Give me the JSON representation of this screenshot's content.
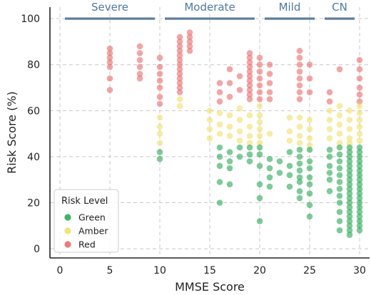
{
  "chart_data": {
    "type": "scatter",
    "title": "",
    "xlabel": "MMSE Score",
    "ylabel": "Risk Score (%)",
    "xlim": [
      -1,
      31
    ],
    "ylim": [
      -4,
      105
    ],
    "xticks": [
      0,
      5,
      10,
      15,
      20,
      25,
      30
    ],
    "yticks": [
      0,
      20,
      40,
      60,
      80,
      100
    ],
    "grid": true,
    "grid_style": "dashed",
    "legend": {
      "title": "Risk Level",
      "placement": "bottom-left",
      "entries": [
        "Green",
        "Amber",
        "Red"
      ]
    },
    "stage_annotations": [
      {
        "label": "Severe",
        "x_start": 0.5,
        "x_end": 9.5,
        "y": 100
      },
      {
        "label": "Moderate",
        "x_start": 10.5,
        "x_end": 19.5,
        "y": 100
      },
      {
        "label": "Mild",
        "x_start": 20.5,
        "x_end": 25.5,
        "y": 100
      },
      {
        "label": "CN",
        "x_start": 26.5,
        "x_end": 29.5,
        "y": 100
      }
    ],
    "series": [
      {
        "name": "Green",
        "color": "#2eaa58",
        "points": [
          [
            10,
            42
          ],
          [
            10,
            39
          ],
          [
            16,
            44
          ],
          [
            16,
            40
          ],
          [
            16,
            36
          ],
          [
            16,
            29
          ],
          [
            16,
            20
          ],
          [
            17,
            42
          ],
          [
            17,
            38
          ],
          [
            17,
            35
          ],
          [
            17,
            28
          ],
          [
            18,
            44
          ],
          [
            18,
            40
          ],
          [
            19,
            44
          ],
          [
            19,
            41
          ],
          [
            19,
            38
          ],
          [
            20,
            44
          ],
          [
            20,
            41
          ],
          [
            20,
            36
          ],
          [
            20,
            28
          ],
          [
            20,
            22
          ],
          [
            20,
            12
          ],
          [
            21,
            39
          ],
          [
            21,
            35
          ],
          [
            21,
            31
          ],
          [
            21,
            27
          ],
          [
            22,
            38
          ],
          [
            22,
            33
          ],
          [
            23,
            42
          ],
          [
            23,
            36
          ],
          [
            23,
            32
          ],
          [
            23,
            27
          ],
          [
            24,
            43
          ],
          [
            24,
            40
          ],
          [
            24,
            37
          ],
          [
            24,
            34
          ],
          [
            24,
            31
          ],
          [
            24,
            29
          ],
          [
            24,
            25
          ],
          [
            24,
            22
          ],
          [
            25,
            43
          ],
          [
            25,
            38
          ],
          [
            25,
            35
          ],
          [
            25,
            31
          ],
          [
            25,
            28
          ],
          [
            25,
            24
          ],
          [
            25,
            19
          ],
          [
            25,
            14
          ],
          [
            27,
            43
          ],
          [
            27,
            40
          ],
          [
            27,
            36
          ],
          [
            27,
            33
          ],
          [
            27,
            30
          ],
          [
            27,
            25
          ],
          [
            28,
            44
          ],
          [
            28,
            41
          ],
          [
            28,
            38
          ],
          [
            28,
            35
          ],
          [
            28,
            32
          ],
          [
            28,
            29
          ],
          [
            28,
            26
          ],
          [
            28,
            23
          ],
          [
            28,
            20
          ],
          [
            28,
            16
          ],
          [
            28,
            12
          ],
          [
            28,
            8
          ],
          [
            29,
            44
          ],
          [
            29,
            42
          ],
          [
            29,
            40
          ],
          [
            29,
            38
          ],
          [
            29,
            36
          ],
          [
            29,
            34
          ],
          [
            29,
            32
          ],
          [
            29,
            30
          ],
          [
            29,
            28
          ],
          [
            29,
            26
          ],
          [
            29,
            24
          ],
          [
            29,
            22
          ],
          [
            29,
            20
          ],
          [
            29,
            18
          ],
          [
            29,
            16
          ],
          [
            29,
            14
          ],
          [
            29,
            12
          ],
          [
            29,
            10
          ],
          [
            29,
            8
          ],
          [
            29,
            6
          ],
          [
            30,
            44
          ],
          [
            30,
            42
          ],
          [
            30,
            40
          ],
          [
            30,
            38
          ],
          [
            30,
            36
          ],
          [
            30,
            34
          ],
          [
            30,
            32
          ],
          [
            30,
            30
          ],
          [
            30,
            28
          ],
          [
            30,
            26
          ],
          [
            30,
            24
          ],
          [
            30,
            22
          ],
          [
            30,
            20
          ],
          [
            30,
            18
          ],
          [
            30,
            16
          ],
          [
            30,
            14
          ],
          [
            30,
            12
          ],
          [
            30,
            10
          ],
          [
            30,
            8
          ]
        ]
      },
      {
        "name": "Amber",
        "color": "#f0e070",
        "points": [
          [
            10,
            57
          ],
          [
            10,
            53
          ],
          [
            10,
            50
          ],
          [
            10,
            46
          ],
          [
            12,
            65
          ],
          [
            12,
            62
          ],
          [
            15,
            60
          ],
          [
            15,
            56
          ],
          [
            15,
            52
          ],
          [
            15,
            48
          ],
          [
            16,
            59
          ],
          [
            16,
            54
          ],
          [
            16,
            50
          ],
          [
            17,
            58
          ],
          [
            17,
            53
          ],
          [
            17,
            49
          ],
          [
            18,
            61
          ],
          [
            18,
            56
          ],
          [
            18,
            51
          ],
          [
            18,
            47
          ],
          [
            19,
            58
          ],
          [
            19,
            53
          ],
          [
            19,
            49
          ],
          [
            19,
            46
          ],
          [
            20,
            62
          ],
          [
            20,
            58
          ],
          [
            20,
            55
          ],
          [
            20,
            52
          ],
          [
            20,
            49
          ],
          [
            20,
            46
          ],
          [
            21,
            50
          ],
          [
            23,
            57
          ],
          [
            23,
            51
          ],
          [
            23,
            47
          ],
          [
            24,
            57
          ],
          [
            24,
            53
          ],
          [
            24,
            49
          ],
          [
            24,
            46
          ],
          [
            25,
            56
          ],
          [
            25,
            52
          ],
          [
            25,
            48
          ],
          [
            25,
            45
          ],
          [
            27,
            60
          ],
          [
            27,
            56
          ],
          [
            27,
            52
          ],
          [
            27,
            48
          ],
          [
            28,
            62
          ],
          [
            28,
            58
          ],
          [
            28,
            54
          ],
          [
            28,
            50
          ],
          [
            28,
            46
          ],
          [
            29,
            60
          ],
          [
            29,
            56
          ],
          [
            29,
            52
          ],
          [
            29,
            48
          ],
          [
            29,
            46
          ],
          [
            30,
            62
          ],
          [
            30,
            59
          ],
          [
            30,
            56
          ],
          [
            30,
            53
          ],
          [
            30,
            50
          ],
          [
            30,
            47
          ]
        ]
      },
      {
        "name": "Red",
        "color": "#e86f6f",
        "points": [
          [
            5,
            87
          ],
          [
            5,
            85
          ],
          [
            5,
            83
          ],
          [
            5,
            81
          ],
          [
            5,
            79
          ],
          [
            5,
            74
          ],
          [
            5,
            69
          ],
          [
            8,
            88
          ],
          [
            8,
            85
          ],
          [
            8,
            82
          ],
          [
            8,
            79
          ],
          [
            8,
            76
          ],
          [
            8,
            74
          ],
          [
            10,
            83
          ],
          [
            10,
            79
          ],
          [
            10,
            76
          ],
          [
            10,
            73
          ],
          [
            10,
            70
          ],
          [
            10,
            66
          ],
          [
            10,
            63
          ],
          [
            12,
            92
          ],
          [
            12,
            90
          ],
          [
            12,
            88
          ],
          [
            12,
            86
          ],
          [
            12,
            84
          ],
          [
            12,
            82
          ],
          [
            12,
            80
          ],
          [
            12,
            78
          ],
          [
            12,
            76
          ],
          [
            12,
            74
          ],
          [
            12,
            72
          ],
          [
            12,
            70
          ],
          [
            12,
            68
          ],
          [
            13,
            94
          ],
          [
            13,
            92
          ],
          [
            13,
            90
          ],
          [
            13,
            88
          ],
          [
            13,
            86
          ],
          [
            16,
            72
          ],
          [
            16,
            68
          ],
          [
            16,
            64
          ],
          [
            17,
            78
          ],
          [
            17,
            72
          ],
          [
            17,
            66
          ],
          [
            18,
            75
          ],
          [
            18,
            69
          ],
          [
            19,
            85
          ],
          [
            19,
            83
          ],
          [
            19,
            81
          ],
          [
            19,
            79
          ],
          [
            19,
            77
          ],
          [
            19,
            75
          ],
          [
            19,
            73
          ],
          [
            19,
            71
          ],
          [
            19,
            69
          ],
          [
            19,
            67
          ],
          [
            19,
            65
          ],
          [
            20,
            83
          ],
          [
            20,
            80
          ],
          [
            20,
            77
          ],
          [
            20,
            74
          ],
          [
            20,
            71
          ],
          [
            20,
            68
          ],
          [
            20,
            65
          ],
          [
            21,
            80
          ],
          [
            21,
            76
          ],
          [
            21,
            72
          ],
          [
            21,
            68
          ],
          [
            21,
            65
          ],
          [
            24,
            86
          ],
          [
            24,
            83
          ],
          [
            24,
            80
          ],
          [
            24,
            77
          ],
          [
            24,
            74
          ],
          [
            24,
            71
          ],
          [
            24,
            68
          ],
          [
            24,
            65
          ],
          [
            25,
            80
          ],
          [
            25,
            74
          ],
          [
            25,
            68
          ],
          [
            27,
            68
          ],
          [
            27,
            64
          ],
          [
            28,
            78
          ],
          [
            30,
            82
          ],
          [
            30,
            78
          ],
          [
            30,
            74
          ],
          [
            30,
            70
          ],
          [
            30,
            67
          ],
          [
            30,
            64
          ]
        ]
      }
    ]
  }
}
